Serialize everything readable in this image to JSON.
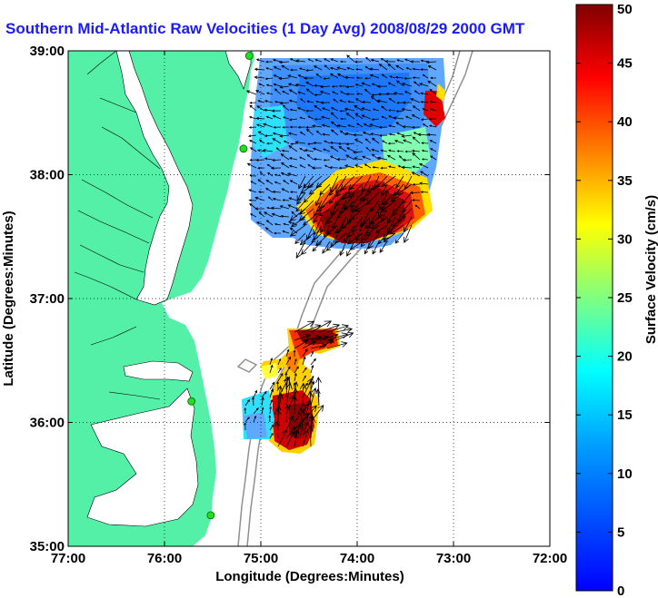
{
  "chart_data": {
    "type": "heatmap",
    "title": "Southern Mid-Atlantic Raw Velocities (1 Day Avg) 2008/08/29 2000 GMT",
    "xlabel": "Longitude (Degrees:Minutes)",
    "ylabel": "Latitude (Degrees:Minutes)",
    "xlim": [
      -77,
      -72
    ],
    "ylim": [
      35,
      39
    ],
    "x_ticks": [
      "77:00",
      "76:00",
      "75:00",
      "74:00",
      "73:00",
      "72:00"
    ],
    "x_tick_values": [
      -77,
      -76,
      -75,
      -74,
      -73,
      -72
    ],
    "y_ticks": [
      "35:00",
      "36:00",
      "37:00",
      "38:00",
      "39:00"
    ],
    "y_tick_values": [
      35,
      36,
      37,
      38,
      39
    ],
    "grid": true,
    "colorbar": {
      "label": "Surface Velocity (cm/s)",
      "min": 0,
      "max": 50,
      "ticks": [
        "0",
        "5",
        "10",
        "15",
        "20",
        "25",
        "30",
        "35",
        "40",
        "45",
        "50"
      ],
      "tick_values": [
        0,
        5,
        10,
        15,
        20,
        25,
        30,
        35,
        40,
        45,
        50
      ]
    },
    "land_color": "#55f0a8",
    "stations": [
      {
        "lon": -75.12,
        "lat": 38.96
      },
      {
        "lon": -75.18,
        "lat": 38.21
      },
      {
        "lon": -75.72,
        "lat": 36.17
      },
      {
        "lon": -75.52,
        "lat": 35.25
      }
    ]
  }
}
